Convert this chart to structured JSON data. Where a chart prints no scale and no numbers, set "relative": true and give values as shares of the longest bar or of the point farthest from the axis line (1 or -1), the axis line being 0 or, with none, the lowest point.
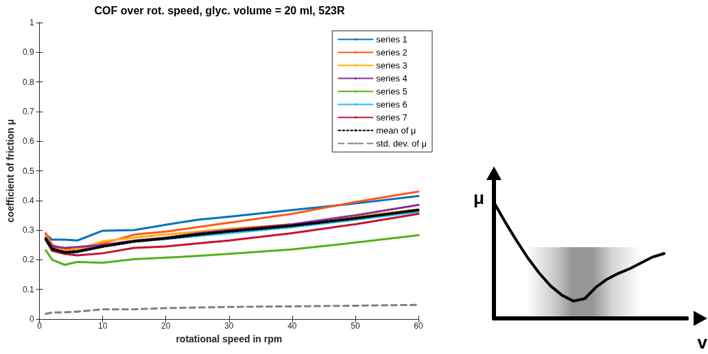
{
  "chart_data": [
    {
      "type": "line",
      "title": "COF over rot. speed, glyc. volume = 20 ml, 523R",
      "xlabel": "rotational speed in rpm",
      "ylabel": "coefficient of friction μ",
      "x": [
        1,
        2,
        4,
        6,
        10,
        15,
        20,
        25,
        30,
        40,
        50,
        60
      ],
      "xlim": [
        0,
        60
      ],
      "xticks": [
        0,
        10,
        20,
        30,
        40,
        50,
        60
      ],
      "ylim": [
        0,
        1
      ],
      "yticks": [
        0,
        0.1,
        0.2,
        0.3,
        0.4,
        0.5,
        0.6,
        0.7,
        0.8,
        0.9,
        1
      ],
      "grid": false,
      "legend": "top right",
      "marker": "none",
      "line_style": "solid",
      "series": [
        {
          "name": "series 1",
          "color": "#0072bd",
          "values": [
            0.285,
            0.268,
            0.268,
            0.265,
            0.298,
            0.3,
            0.318,
            0.335,
            0.345,
            0.368,
            0.39,
            0.415
          ]
        },
        {
          "name": "series 2",
          "color": "#ff5a1a",
          "values": [
            0.29,
            0.25,
            0.235,
            0.235,
            0.255,
            0.285,
            0.295,
            0.31,
            0.325,
            0.355,
            0.395,
            0.43
          ]
        },
        {
          "name": "series 3",
          "color": "#ffb000",
          "values": [
            0.28,
            0.245,
            0.23,
            0.235,
            0.262,
            0.275,
            0.285,
            0.295,
            0.305,
            0.32,
            0.345,
            0.37
          ]
        },
        {
          "name": "series 4",
          "color": "#8e2c9a",
          "values": [
            0.275,
            0.245,
            0.24,
            0.243,
            0.25,
            0.265,
            0.275,
            0.29,
            0.3,
            0.32,
            0.35,
            0.385
          ]
        },
        {
          "name": "series 5",
          "color": "#53b01a",
          "values": [
            0.232,
            0.2,
            0.183,
            0.193,
            0.19,
            0.202,
            0.207,
            0.213,
            0.22,
            0.235,
            0.258,
            0.283
          ]
        },
        {
          "name": "series 6",
          "color": "#1ec0f0",
          "values": [
            0.265,
            0.232,
            0.22,
            0.225,
            0.245,
            0.262,
            0.27,
            0.28,
            0.29,
            0.31,
            0.335,
            0.362
          ]
        },
        {
          "name": "series 7",
          "color": "#c8102e",
          "values": [
            0.268,
            0.23,
            0.22,
            0.215,
            0.222,
            0.24,
            0.245,
            0.255,
            0.265,
            0.29,
            0.32,
            0.355
          ]
        },
        {
          "name": "mean of μ",
          "color": "#000000",
          "line_style": "dotted",
          "values": [
            0.27,
            0.237,
            0.225,
            0.228,
            0.245,
            0.262,
            0.272,
            0.285,
            0.296,
            0.315,
            0.34,
            0.368
          ]
        },
        {
          "name": "std. dev. of μ",
          "color": "#808080",
          "line_style": "dashed",
          "values": [
            0.018,
            0.022,
            0.023,
            0.025,
            0.033,
            0.033,
            0.037,
            0.039,
            0.041,
            0.043,
            0.045,
            0.048
          ]
        }
      ]
    },
    {
      "type": "line",
      "relative": true,
      "xlabel": "v",
      "ylabel": "μ",
      "tick_labels": false,
      "grid": false,
      "legend": false,
      "marker": "none",
      "categories": [
        null,
        null,
        null,
        null,
        null,
        null,
        null,
        null,
        null,
        null,
        null,
        null,
        null,
        null,
        null,
        null,
        null,
        null
      ],
      "series": [
        {
          "color": "#000000",
          "values": [
            1,
            0.83,
            0.67,
            0.52,
            0.39,
            0.28,
            0.2,
            0.15,
            0.17,
            0.27,
            0.34,
            0.39,
            0.43,
            0.48,
            0.53,
            0.56,
            null,
            null
          ]
        }
      ]
    }
  ]
}
